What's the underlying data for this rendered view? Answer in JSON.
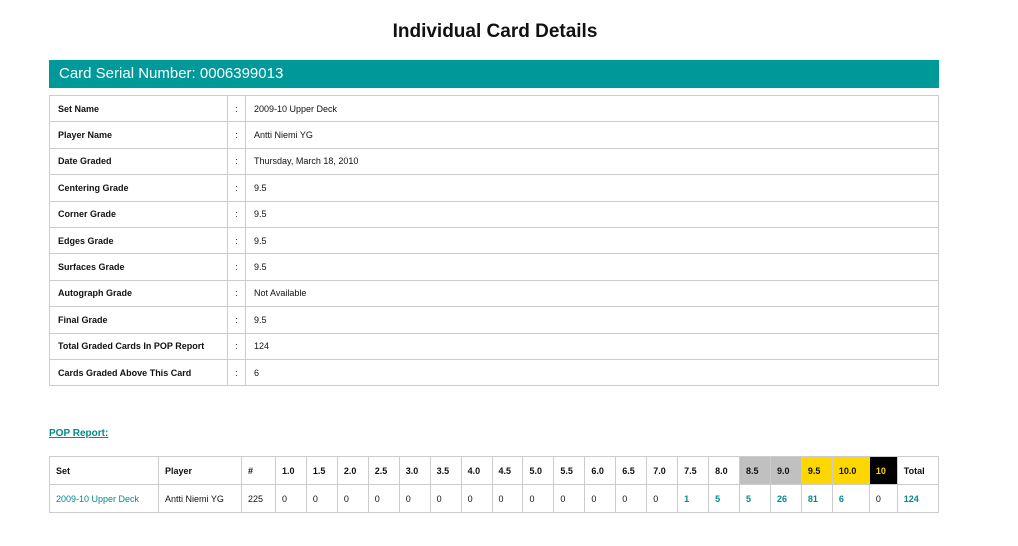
{
  "title": "Individual Card Details",
  "serial_label": "Card Serial Number: 0006399013",
  "details": [
    {
      "label": "Set Name",
      "value": "2009-10 Upper Deck"
    },
    {
      "label": "Player Name",
      "value": "Antti Niemi YG"
    },
    {
      "label": "Date Graded",
      "value": "Thursday, March 18, 2010"
    },
    {
      "label": "Centering Grade",
      "value": "9.5"
    },
    {
      "label": "Corner Grade",
      "value": "9.5"
    },
    {
      "label": "Edges Grade",
      "value": "9.5"
    },
    {
      "label": "Surfaces Grade",
      "value": "9.5"
    },
    {
      "label": "Autograph Grade",
      "value": "Not Available"
    },
    {
      "label": "Final Grade",
      "value": "9.5"
    },
    {
      "label": "Total Graded Cards In POP Report",
      "value": "124"
    },
    {
      "label": "Cards Graded Above This Card",
      "value": "6"
    }
  ],
  "colon": ":",
  "pop_link": "POP Report: ",
  "pop": {
    "headers": [
      "Set",
      "Player",
      "#",
      "1.0",
      "1.5",
      "2.0",
      "2.5",
      "3.0",
      "3.5",
      "4.0",
      "4.5",
      "5.0",
      "5.5",
      "6.0",
      "6.5",
      "7.0",
      "7.5",
      "8.0",
      "8.5",
      "9.0",
      "9.5",
      "10.0",
      "10",
      "Total"
    ],
    "row": [
      "2009-10 Upper Deck",
      "Antti Niemi YG",
      "225",
      "0",
      "0",
      "0",
      "0",
      "0",
      "0",
      "0",
      "0",
      "0",
      "0",
      "0",
      "0",
      "0",
      "1",
      "5",
      "5",
      "26",
      "81",
      "6",
      "0",
      "124"
    ]
  },
  "colors": {
    "accent": "#00999a",
    "silver": "#c0c0c0",
    "gold": "#ffd700",
    "black": "#000000"
  }
}
